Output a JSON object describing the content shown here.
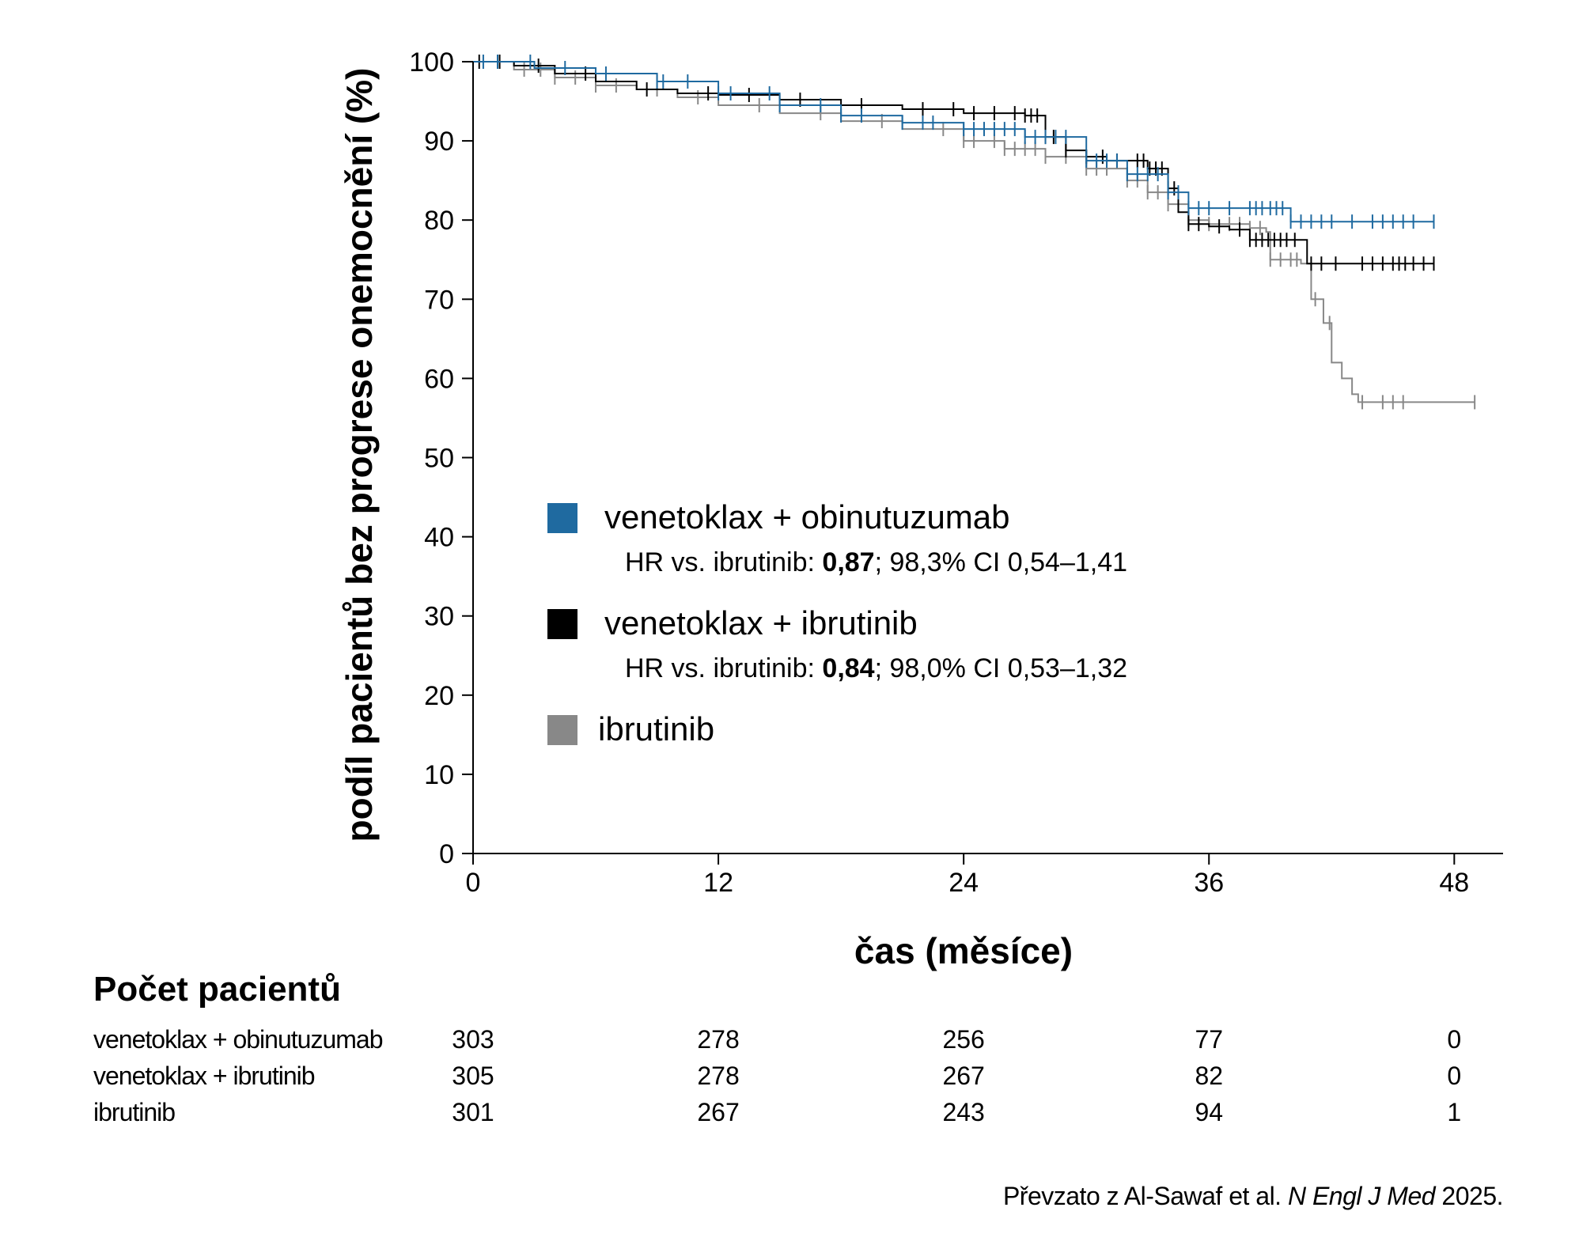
{
  "chart_data": {
    "type": "line",
    "title": "",
    "xlabel": "čas (měsíce)",
    "ylabel": "podíl pacientů bez progrese onemocnění (%)",
    "xlim": [
      0,
      50
    ],
    "ylim": [
      0,
      100
    ],
    "xticks": [
      0,
      12,
      24,
      36,
      48
    ],
    "yticks": [
      0,
      10,
      20,
      30,
      40,
      50,
      60,
      70,
      80,
      90,
      100
    ],
    "grid": false,
    "legend_position": "center",
    "series": [
      {
        "name": "venetoklax + obinutuzumab",
        "color": "#1f6aa0",
        "hr_text": "HR vs. ibrutinib: ",
        "hr_value": "0,87",
        "hr_ci": "; 98,3% CI 0,54–1,41",
        "x": [
          0,
          3,
          6,
          9,
          12,
          15,
          18,
          21,
          24,
          27,
          30,
          32,
          34,
          35,
          36,
          40,
          47
        ],
        "y": [
          100,
          99.2,
          98.5,
          97.5,
          96,
          94.5,
          93.2,
          92.3,
          91.5,
          90.5,
          87.5,
          85.8,
          83.5,
          81.5,
          81.5,
          79.8,
          79.8
        ],
        "censor_x": [
          0.5,
          1.2,
          2.8,
          4.5,
          6.5,
          9,
          9.3,
          10.5,
          12,
          12.6,
          14.5,
          15,
          17,
          18,
          19,
          21,
          22,
          22.5,
          24,
          24.5,
          25,
          25.5,
          26,
          26.5,
          27,
          27.5,
          28,
          28.5,
          29,
          30,
          30.5,
          31,
          31.5,
          32,
          32.5,
          33,
          33.5,
          34,
          34.5,
          35,
          35.5,
          36,
          37,
          38,
          38.3,
          38.6,
          39,
          39.3,
          39.6,
          40,
          40.5,
          41,
          41.5,
          42,
          43,
          44,
          44.5,
          45,
          45.5,
          46,
          47
        ]
      },
      {
        "name": "venetoklax + ibrutinib",
        "color": "#000000",
        "hr_text": "HR vs. ibrutinib: ",
        "hr_value": "0,84",
        "hr_ci": "; 98,0% CI 0,53–1,32",
        "x": [
          0,
          2,
          4,
          6,
          8,
          10,
          12,
          15,
          18,
          21,
          24,
          27,
          28,
          29,
          30,
          31,
          32,
          33,
          34,
          34.5,
          35,
          36,
          37,
          38,
          40,
          40.8,
          47
        ],
        "y": [
          100,
          99.5,
          98.5,
          97.5,
          96.5,
          96,
          95.8,
          95.2,
          94.5,
          94,
          93.5,
          93.2,
          90.5,
          88.8,
          88,
          87.5,
          87.5,
          86.5,
          84,
          81,
          79.5,
          79.2,
          78.8,
          77.5,
          77.5,
          74.5,
          74.5
        ],
        "censor_x": [
          0.3,
          1.3,
          3.2,
          5.5,
          8.5,
          11.5,
          13.5,
          16,
          19,
          22,
          23.5,
          24.5,
          25.5,
          26.5,
          27,
          27.3,
          27.6,
          28,
          28.4,
          29,
          30,
          30.8,
          31.5,
          32.5,
          32.8,
          33.1,
          33.4,
          33.7,
          34,
          34.3,
          35,
          35.5,
          36.5,
          37.5,
          38,
          38.3,
          38.6,
          38.9,
          39.2,
          39.5,
          39.8,
          40.2,
          41,
          41.5,
          42.2,
          43.5,
          44,
          44.5,
          45,
          45.3,
          45.6,
          46,
          46.5,
          47
        ]
      },
      {
        "name": "ibrutinib",
        "color": "#888888",
        "hr_text": "",
        "hr_value": "",
        "hr_ci": "",
        "x": [
          0,
          2,
          4,
          6,
          8,
          10,
          12,
          15,
          18,
          21,
          24,
          26,
          28,
          30,
          32,
          33,
          34,
          35,
          36,
          38,
          38.8,
          39,
          40.5,
          41,
          41.6,
          42,
          42.5,
          43,
          43.3,
          43.8,
          49
        ],
        "y": [
          100,
          99,
          98,
          97,
          96.5,
          95.5,
          94.5,
          93.5,
          92.5,
          91.5,
          90,
          89,
          88,
          86.5,
          85,
          83.5,
          82,
          80,
          79.5,
          79,
          78.5,
          75,
          74.5,
          70,
          67,
          62,
          60,
          58,
          57,
          57,
          57
        ],
        "censor_x": [
          2.5,
          3.3,
          4,
          5,
          6,
          7,
          9,
          11,
          14,
          17,
          20,
          23,
          24,
          24.5,
          25.5,
          26,
          26.5,
          27,
          27.5,
          28,
          29,
          30,
          30.5,
          31,
          32,
          32.5,
          33,
          33.5,
          34,
          35,
          36,
          37,
          37.5,
          38,
          38.5,
          39,
          39.5,
          40,
          40.3,
          41.2,
          41.9,
          43.5,
          44.5,
          45,
          45.5,
          49
        ]
      }
    ]
  },
  "risk_table": {
    "title": "Počet pacientů",
    "rows": [
      {
        "name": "venetoklax + obinutuzumab",
        "values": [
          "303",
          "278",
          "256",
          "77",
          "0"
        ]
      },
      {
        "name": "venetoklax + ibrutinib",
        "values": [
          "305",
          "278",
          "267",
          "82",
          "0"
        ]
      },
      {
        "name": "ibrutinib",
        "values": [
          "301",
          "267",
          "243",
          "94",
          "1"
        ]
      }
    ]
  },
  "source": {
    "prefix": "Převzato z Al-Sawaf et al. ",
    "journal": "N Engl J Med",
    "suffix": " 2025."
  }
}
